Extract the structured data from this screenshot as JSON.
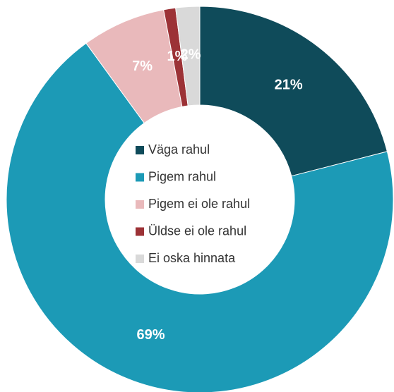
{
  "chart_data": {
    "type": "donut",
    "categories": [
      "Väga rahul",
      "Pigem rahul",
      "Pigem ei ole rahul",
      "Üldse ei ole rahul",
      "Ei oska hinnata"
    ],
    "values": [
      21,
      69,
      7,
      1,
      2
    ],
    "value_labels": [
      "21%",
      "69%",
      "7%",
      "1%",
      "2%"
    ],
    "colors": [
      "#0f4b5a",
      "#1c9ab6",
      "#e9b9bb",
      "#9c3236",
      "#d9d9d9"
    ],
    "legend": "center"
  }
}
